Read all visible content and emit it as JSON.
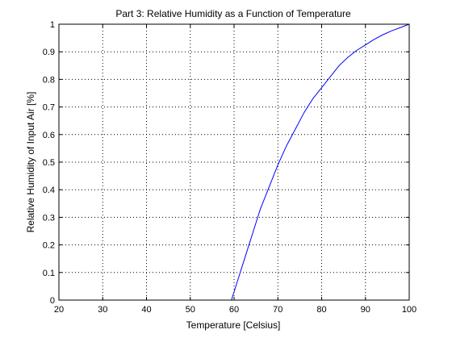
{
  "chart_data": {
    "type": "line",
    "title": "Part 3: Relative Humidity as a Function of Temperature",
    "xlabel": "Temperature [Celsius]",
    "ylabel": "Relative Humidity of Input Air [%]",
    "xlim": [
      20,
      100
    ],
    "ylim": [
      0,
      1
    ],
    "xticks": [
      20,
      30,
      40,
      50,
      60,
      70,
      80,
      90,
      100
    ],
    "yticks": [
      0,
      0.1,
      0.2,
      0.3,
      0.4,
      0.5,
      0.6,
      0.7,
      0.8,
      0.9,
      1
    ],
    "xtick_labels": [
      "20",
      "30",
      "40",
      "50",
      "60",
      "70",
      "80",
      "90",
      "100"
    ],
    "ytick_labels": [
      "0",
      "0.1",
      "0.2",
      "0.3",
      "0.4",
      "0.5",
      "0.6",
      "0.7",
      "0.8",
      "0.9",
      "1"
    ],
    "grid": true,
    "series": [
      {
        "color": "#0000ff",
        "x": [
          59.4,
          60,
          61,
          62,
          63,
          64,
          65,
          66,
          67,
          68,
          69,
          70,
          72,
          74,
          76,
          78,
          80,
          82,
          84,
          86,
          88,
          90,
          92,
          94,
          96,
          98,
          100
        ],
        "y": [
          0.0,
          0.03,
          0.08,
          0.13,
          0.18,
          0.23,
          0.28,
          0.33,
          0.37,
          0.41,
          0.45,
          0.49,
          0.56,
          0.62,
          0.68,
          0.73,
          0.77,
          0.81,
          0.85,
          0.88,
          0.905,
          0.925,
          0.945,
          0.962,
          0.976,
          0.988,
          1.0
        ]
      }
    ]
  }
}
